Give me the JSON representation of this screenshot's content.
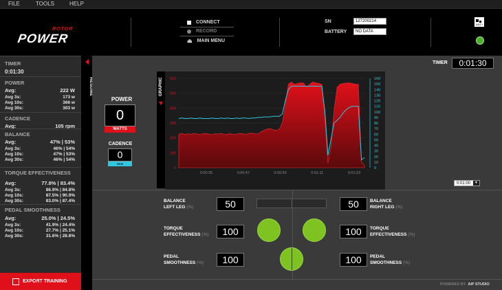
{
  "menu": [
    "FILE",
    "TOOLS",
    "HELP"
  ],
  "logo": {
    "brand": "ROTOR",
    "product": "POWER"
  },
  "header": {
    "connect": "CONNECT",
    "record": "RECORD",
    "main_menu": "MAIN MENU",
    "sn_label": "SN",
    "sn_value": "127200214",
    "battery_label": "BATTERY",
    "battery_value": "NO DATA"
  },
  "left": {
    "timer": {
      "title": "TIMER",
      "value": "0:01:30"
    },
    "power": {
      "title": "POWER",
      "rows": [
        {
          "label": "Avg:",
          "value": "222 W"
        },
        {
          "label": "Avg 3s:",
          "value": "173 w"
        },
        {
          "label": "Avg 10s:",
          "value": "366 w"
        },
        {
          "label": "Avg 30s:",
          "value": "303 w"
        }
      ]
    },
    "cadence": {
      "title": "CADENCE",
      "rows": [
        {
          "label": "Avg:",
          "value": "105 rpm"
        }
      ]
    },
    "balance": {
      "title": "BALANCE",
      "rows": [
        {
          "label": "Avg:",
          "value": "47% | 53%"
        },
        {
          "label": "Avg 3s:",
          "value": "46% | 54%"
        },
        {
          "label": "Avg 10s:",
          "value": "47% | 53%"
        },
        {
          "label": "Avg 30s:",
          "value": "46% | 54%"
        }
      ]
    },
    "torque": {
      "title": "TORQUE EFFECTIVENESS",
      "rows": [
        {
          "label": "Avg:",
          "value": "77.8% | 83.4%"
        },
        {
          "label": "Avg 3s:",
          "value": "86.9% | 84.8%"
        },
        {
          "label": "Avg 10s:",
          "value": "87.5% | 90.9%"
        },
        {
          "label": "Avg 30s:",
          "value": "83.0% | 87.4%"
        }
      ]
    },
    "smoothness": {
      "title": "PEDAL SMOOTHNESS",
      "rows": [
        {
          "label": "Avg:",
          "value": "25.0% | 24.5%"
        },
        {
          "label": "Avg 3s:",
          "value": "41.9% | 24.4%"
        },
        {
          "label": "Avg 10s:",
          "value": "27.7% | 25.1%"
        },
        {
          "label": "Avg 30s:",
          "value": "31.6% | 28.8%"
        }
      ]
    },
    "export": "EXPORT TRAINING"
  },
  "resume": "RESUME",
  "graphic": "GRAPHIC",
  "timer": {
    "label": "TIMER",
    "value": "0:01:30"
  },
  "power_display": {
    "title": "POWER",
    "value": "0",
    "unit": "WATTS"
  },
  "cadence_display": {
    "title": "CADENCE",
    "value": "0",
    "unit": "RPM"
  },
  "zoom": "0:01:00",
  "balance": {
    "left_label": "BALANCE",
    "left_sub": "LEFT LEG",
    "right_label": "BALANCE",
    "right_sub": "RIGHT LEG",
    "pct": "(%)",
    "left": "50",
    "right": "50"
  },
  "torque": {
    "label": "TORQUE",
    "sub": "EFFECTIVENESS",
    "pct": "(%)",
    "left": "100",
    "right": "100"
  },
  "smooth": {
    "label": "PEDAL",
    "sub": "SMOOTHNESS",
    "pct": "(%)",
    "left": "100",
    "right": "100"
  },
  "powered": {
    "prefix": "POWERED BY",
    "brand": "AIP STUDIO"
  },
  "colors": {
    "accent": "#e0101a",
    "cadence": "#30c8e0",
    "green": "#7ec321"
  },
  "chart_data": {
    "type": "area",
    "x_ticks": [
      "0:00:35",
      "0:00:47",
      "0:00:59",
      "0:01:11",
      "0:01:23"
    ],
    "y_left_ticks": [
      0,
      100,
      200,
      300,
      400,
      500,
      600
    ],
    "y_left_tick_labels": [
      "0",
      "100",
      "200",
      "300",
      "400",
      "500",
      "600"
    ],
    "y_right_ticks": [
      0,
      10,
      20,
      30,
      40,
      50,
      60,
      70,
      80,
      90,
      100,
      110,
      120,
      130,
      140,
      150,
      160
    ],
    "y_left_range": [
      0,
      600
    ],
    "y_right_range": [
      0,
      160
    ],
    "series": [
      {
        "name": "power",
        "axis": "left",
        "color": "#e0101a",
        "values": [
          225,
          230,
          222,
          228,
          225,
          230,
          226,
          224,
          228,
          230,
          225,
          222,
          228,
          226,
          230,
          224,
          225,
          228,
          222,
          226,
          230,
          228,
          224,
          230,
          232,
          228,
          226,
          240,
          250,
          260,
          262,
          255,
          250,
          258,
          300,
          420,
          560,
          575,
          560,
          565,
          570,
          568,
          540,
          560,
          575,
          570,
          565,
          560,
          330,
          30,
          140,
          380,
          540,
          560,
          565,
          568,
          570,
          565,
          560,
          560,
          40,
          15
        ]
      },
      {
        "name": "cadence",
        "axis": "right",
        "color": "#30c8e0",
        "values": [
          88,
          89,
          88,
          88,
          89,
          88,
          88,
          89,
          88,
          88,
          88,
          89,
          88,
          88,
          89,
          88,
          89,
          88,
          88,
          89,
          88,
          89,
          89,
          88,
          89,
          89,
          90,
          90,
          91,
          91,
          91,
          92,
          92,
          92,
          96,
          120,
          140,
          146,
          146,
          146,
          146,
          146,
          146,
          146,
          146,
          146,
          146,
          146,
          100,
          22,
          50,
          80,
          85,
          90,
          98,
          104,
          108,
          110,
          110,
          110,
          14,
          18
        ]
      }
    ]
  }
}
